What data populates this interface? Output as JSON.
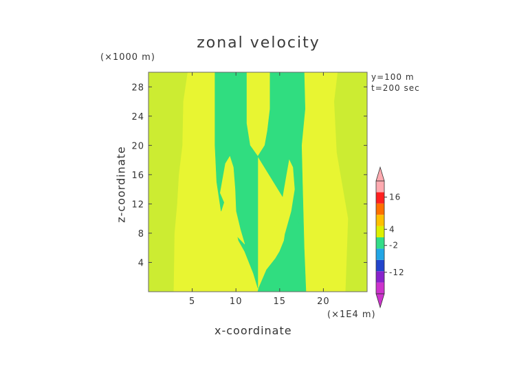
{
  "chart_data": {
    "type": "heatmap",
    "title": "zonal velocity",
    "xlabel": "x-coordinate",
    "ylabel": "z-coordinate",
    "x_unit_label": "(×1E4 m)",
    "y_unit_label": "(×1000 m)",
    "info": [
      "y=100 m",
      "t=200 sec"
    ],
    "xlim": [
      0,
      25
    ],
    "ylim": [
      0,
      30
    ],
    "x_ticks": [
      5,
      10,
      15,
      20
    ],
    "y_ticks": [
      4,
      8,
      12,
      16,
      20,
      24,
      28
    ],
    "colorbar": {
      "tick_labels": [
        "16",
        "4",
        "-2",
        "-12"
      ],
      "tick_values": [
        16,
        4,
        -2,
        -12
      ],
      "range": [
        -20,
        22
      ],
      "colors": [
        "#cc33cc",
        "#8822cc",
        "#2244cc",
        "#22a6e6",
        "#33dd88",
        "#ddf000",
        "#ffc000",
        "#ff7000",
        "#ff2020",
        "#ffaab0"
      ]
    },
    "regions": [
      {
        "name": "outer-band",
        "color": "#ccec32",
        "polygon": [
          [
            0,
            0
          ],
          [
            25,
            0
          ],
          [
            25,
            30
          ],
          [
            0,
            30
          ]
        ]
      },
      {
        "name": "yellow-zone",
        "color": "#e8f532",
        "polygon": [
          [
            2.9,
            0
          ],
          [
            22.5,
            0
          ],
          [
            22.8,
            10
          ],
          [
            21.5,
            19
          ],
          [
            21.2,
            26
          ],
          [
            21.6,
            30
          ],
          [
            4.5,
            30
          ],
          [
            4.0,
            26
          ],
          [
            3.9,
            20
          ],
          [
            3.5,
            16
          ],
          [
            3.3,
            12
          ],
          [
            3.0,
            8
          ]
        ]
      },
      {
        "name": "green-left",
        "color": "#30dd80",
        "polygon": [
          [
            7.6,
            30
          ],
          [
            11.2,
            30
          ],
          [
            11.2,
            23
          ],
          [
            11.6,
            20
          ],
          [
            12.5,
            18.5
          ],
          [
            12.5,
            0.5
          ],
          [
            12.0,
            2.5
          ],
          [
            11.0,
            5.5
          ],
          [
            10.3,
            7
          ],
          [
            9.9,
            9
          ],
          [
            9.5,
            14
          ],
          [
            9.3,
            15
          ],
          [
            9.1,
            14
          ],
          [
            8.3,
            11
          ],
          [
            7.8,
            15
          ],
          [
            7.6,
            20
          ]
        ]
      },
      {
        "name": "green-right",
        "color": "#30dd80",
        "polygon": [
          [
            12.5,
            18.5
          ],
          [
            13.3,
            20
          ],
          [
            13.6,
            22
          ],
          [
            13.9,
            25
          ],
          [
            13.9,
            30
          ],
          [
            17.8,
            30
          ],
          [
            17.9,
            25
          ],
          [
            17.5,
            20
          ],
          [
            17.6,
            15
          ],
          [
            17.8,
            6
          ],
          [
            18.0,
            0
          ],
          [
            12.5,
            0
          ],
          [
            12.6,
            0.5
          ],
          [
            13.5,
            3
          ],
          [
            14.5,
            4.5
          ],
          [
            15.0,
            5.5
          ],
          [
            15.5,
            7
          ],
          [
            16.0,
            11
          ],
          [
            16.4,
            13
          ],
          [
            16.6,
            14
          ],
          [
            16.9,
            12.5
          ],
          [
            17.1,
            11
          ],
          [
            17.4,
            9
          ]
        ]
      },
      {
        "name": "yellow-tongue-left",
        "color": "#e8f532",
        "polygon": [
          [
            8.2,
            13.5
          ],
          [
            8.8,
            17.5
          ],
          [
            9.3,
            18.5
          ],
          [
            9.7,
            17
          ],
          [
            9.9,
            14
          ],
          [
            10.0,
            11
          ],
          [
            10.5,
            8.5
          ],
          [
            11.0,
            6.5
          ],
          [
            10.2,
            7.5
          ],
          [
            9.6,
            9
          ],
          [
            9.1,
            11
          ]
        ]
      },
      {
        "name": "yellow-tongue-right",
        "color": "#e8f532",
        "polygon": [
          [
            13.9,
            7.0
          ],
          [
            14.6,
            9.5
          ],
          [
            15.3,
            12.5
          ],
          [
            15.8,
            16
          ],
          [
            16.1,
            18
          ],
          [
            16.5,
            17
          ],
          [
            16.7,
            14
          ],
          [
            16.3,
            11
          ],
          [
            15.6,
            8
          ],
          [
            14.7,
            6.5
          ]
        ]
      }
    ]
  }
}
